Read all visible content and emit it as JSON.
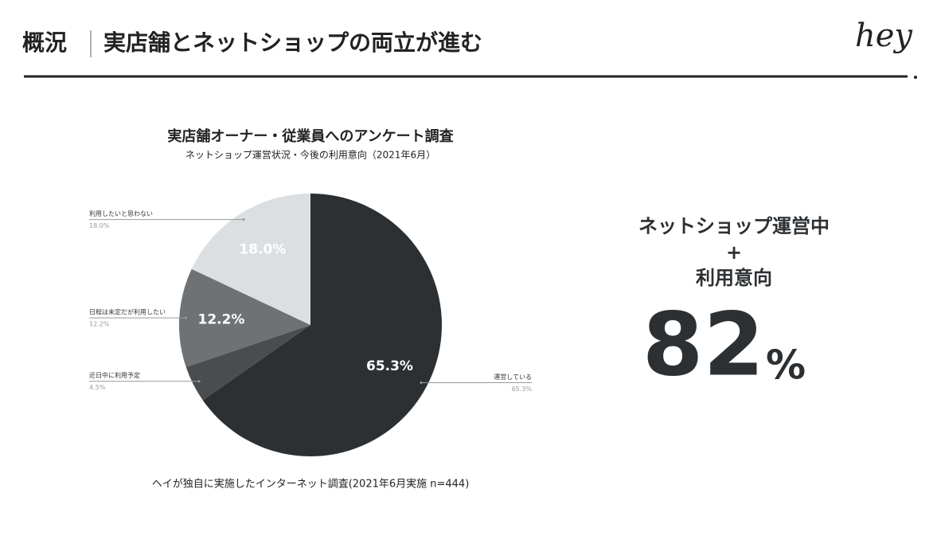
{
  "header": {
    "section": "概況",
    "title": "実店舗とネットショップの両立が進む",
    "logo": "hey"
  },
  "chart_data": {
    "type": "pie",
    "title": "実店舗オーナー・従業員へのアンケート調査",
    "subtitle": "ネットショップ運営状況・今後の利用意向（2021年6月）",
    "categories": [
      "運営している",
      "近日中に利用予定",
      "日程は未定だが利用したい",
      "利用したいと思わない"
    ],
    "values": [
      65.3,
      4.5,
      12.2,
      18.0
    ],
    "value_labels": [
      "65.3%",
      "4.5%",
      "12.2%",
      "18.0%"
    ],
    "colors": [
      "#2d3033",
      "#4a4d50",
      "#6f7274",
      "#dcdfe1"
    ],
    "note": "ヘイが独自に実施したインターネット調査(2021年6月実施 n=444)"
  },
  "highlight": {
    "lines": [
      "ネットショップ運営中",
      "+",
      "利用意向"
    ],
    "value": "82",
    "unit": "%"
  }
}
